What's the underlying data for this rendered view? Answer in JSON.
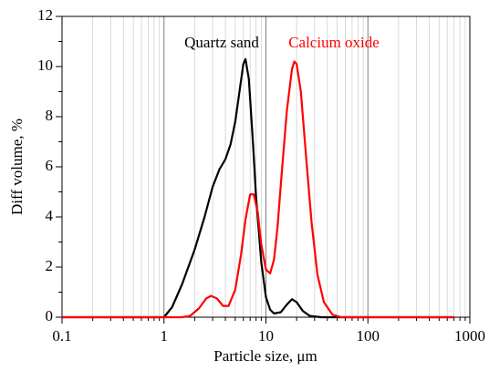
{
  "chart_data": {
    "type": "line",
    "x_label": "Particle size, μm",
    "y_label": "Diff volume, %",
    "xscale": "log",
    "xlim": [
      0.1,
      1000
    ],
    "xticks": [
      0.1,
      1,
      10,
      100,
      1000
    ],
    "ylim": [
      0,
      12
    ],
    "yticks": [
      0,
      2,
      4,
      6,
      8,
      10,
      12
    ],
    "grid": true,
    "series": [
      {
        "name": "Quartz sand",
        "color": "#000000",
        "x": [
          0.1,
          1,
          1.2,
          1.5,
          2,
          2.5,
          3,
          3.5,
          4,
          4.5,
          5,
          5.5,
          6,
          6.3,
          6.8,
          7.5,
          8,
          9,
          10,
          11,
          12,
          14,
          16,
          18,
          20,
          23,
          27,
          35,
          700
        ],
        "values": [
          0,
          0,
          0.4,
          1.3,
          2.7,
          4.0,
          5.2,
          5.9,
          6.3,
          6.9,
          7.8,
          9.0,
          10.1,
          10.3,
          9.5,
          6.8,
          4.8,
          2.2,
          0.8,
          0.3,
          0.15,
          0.2,
          0.5,
          0.72,
          0.6,
          0.25,
          0.05,
          0,
          0
        ]
      },
      {
        "name": "Calcium oxide",
        "color": "#ff0000",
        "x": [
          0.1,
          1.5,
          1.8,
          2.2,
          2.6,
          2.9,
          3.3,
          3.8,
          4.3,
          5,
          5.7,
          6.3,
          7,
          7.6,
          8.3,
          9,
          10,
          11,
          12,
          13,
          14,
          16,
          18,
          19,
          20,
          22,
          25,
          28,
          32,
          37,
          45,
          55,
          700
        ],
        "values": [
          0,
          0,
          0.05,
          0.35,
          0.75,
          0.85,
          0.75,
          0.45,
          0.45,
          1.1,
          2.5,
          3.9,
          4.9,
          4.9,
          4.2,
          2.9,
          1.9,
          1.75,
          2.3,
          3.6,
          5.3,
          8.2,
          9.9,
          10.2,
          10.1,
          9.0,
          6.2,
          3.8,
          1.7,
          0.6,
          0.1,
          0,
          0
        ]
      }
    ]
  }
}
